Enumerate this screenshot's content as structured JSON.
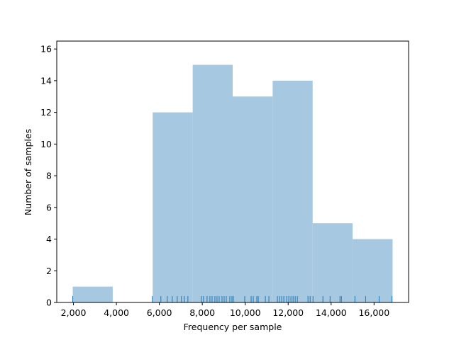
{
  "chart_data": {
    "type": "histogram",
    "x_label": "Frequency per sample",
    "y_label": "Number of samples",
    "bins": [
      1967,
      3829,
      5691,
      7553,
      9415,
      11277,
      13139,
      15001,
      16863
    ],
    "counts": [
      1,
      0,
      12,
      15,
      13,
      14,
      5,
      4
    ],
    "color": "#a6c8e0",
    "rug_color": "#1f77b4",
    "rug": [
      1967,
      5674,
      6071,
      6369,
      6601,
      6833,
      7031,
      7164,
      7329,
      7958,
      8057,
      8223,
      8355,
      8455,
      8587,
      8686,
      8785,
      8918,
      9017,
      9117,
      9282,
      9381,
      9447,
      9977,
      10275,
      10374,
      10540,
      10606,
      10937,
      11102,
      11500,
      11599,
      11698,
      11798,
      11930,
      12029,
      12128,
      12228,
      12327,
      12427,
      12923,
      13023,
      13155,
      13619,
      13950,
      14413,
      14480,
      15109,
      15605,
      16234,
      16830
    ],
    "xlim": [
      1222,
      17608
    ],
    "ylim": [
      0,
      16.5
    ],
    "xticks": [
      {
        "value": 2000,
        "label": "2,000"
      },
      {
        "value": 4000,
        "label": "4,000"
      },
      {
        "value": 6000,
        "label": "6,000"
      },
      {
        "value": 8000,
        "label": "8,000"
      },
      {
        "value": 10000,
        "label": "10,000"
      },
      {
        "value": 12000,
        "label": "12,000"
      },
      {
        "value": 14000,
        "label": "14,000"
      },
      {
        "value": 16000,
        "label": "16,000"
      }
    ],
    "yticks": [
      0,
      2,
      4,
      6,
      8,
      10,
      12,
      14,
      16
    ]
  }
}
